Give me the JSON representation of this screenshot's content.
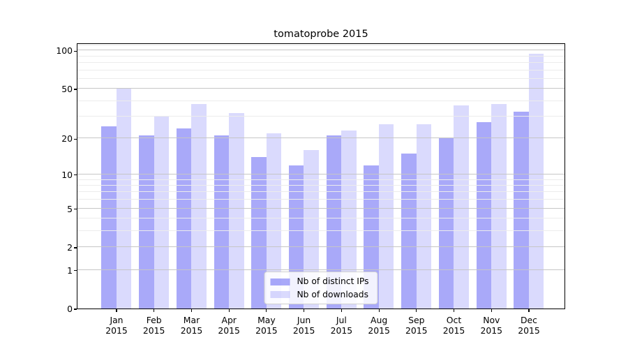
{
  "title": "tomatoprobe 2015",
  "colors": {
    "bar_distinct_ips": "rgba(30,30,240,0.38)",
    "bar_downloads": "rgba(30,30,240,0.165)",
    "bar_distinct_ips_hex": "#a9a9f9",
    "bar_downloads_hex": "#dadafd",
    "grid_major": "#c6c6c6",
    "grid_minor": "#ececec",
    "spine": "#000000",
    "text": "#000000",
    "legend_border": "#cfcfcf"
  },
  "chart_data": {
    "type": "bar",
    "title": "tomatoprobe 2015",
    "categories": [
      "Jan",
      "Feb",
      "Mar",
      "Apr",
      "May",
      "Jun",
      "Jul",
      "Aug",
      "Sep",
      "Oct",
      "Nov",
      "Dec"
    ],
    "category_year": "2015",
    "series": [
      {
        "name": "Nb of distinct IPs",
        "values": [
          25,
          21,
          24,
          21,
          14,
          12,
          21,
          12,
          15,
          20,
          27,
          33
        ]
      },
      {
        "name": "Nb of downloads",
        "values": [
          50,
          30,
          38,
          32,
          22,
          16,
          23,
          26,
          26,
          37,
          38,
          94
        ]
      }
    ],
    "xlabel": "",
    "ylabel": "",
    "y_axis": {
      "scale": "log(1+v)",
      "tick_labels": [
        "0",
        "1",
        "2",
        "5",
        "10",
        "20",
        "50",
        "100"
      ],
      "ticks": [
        0,
        1,
        2,
        5,
        10,
        20,
        50,
        100
      ],
      "minor_gridlines": [
        3,
        4,
        6,
        7,
        8,
        9,
        30,
        40,
        60,
        70,
        80,
        90,
        110
      ],
      "ylim": [
        0,
        115.3
      ]
    },
    "grid": "horizontal",
    "legend_position": "lower center"
  }
}
